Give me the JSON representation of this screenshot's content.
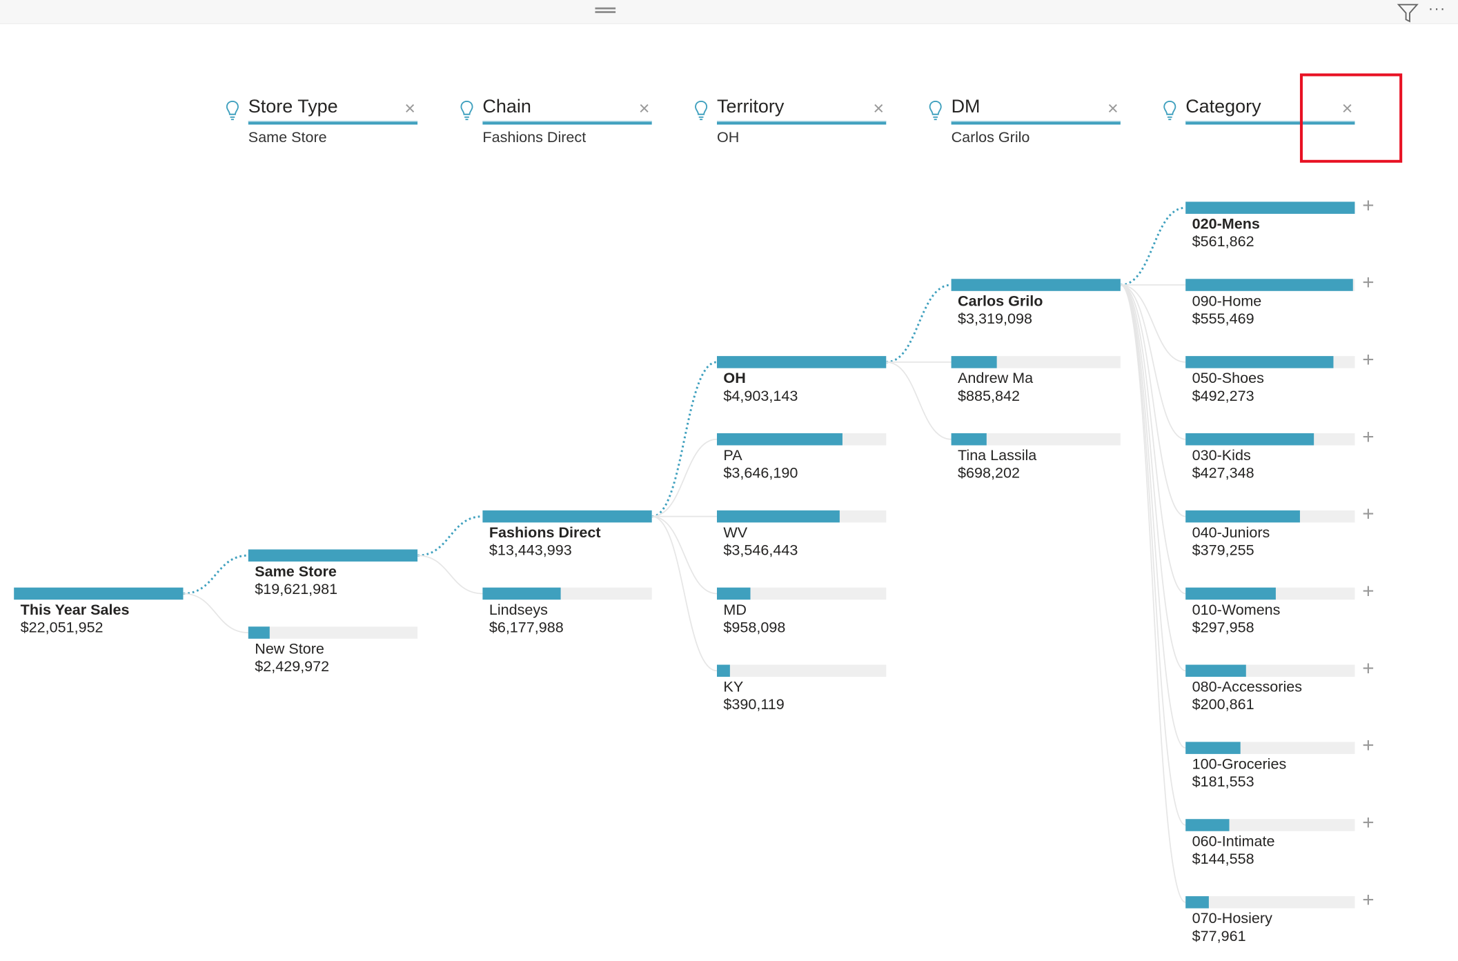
{
  "toolbar": {
    "grip_icon": "drag-handle-icon",
    "filter_icon": "filter-icon",
    "more_icon": "more-options-icon",
    "more_label": "···"
  },
  "accent_color": "#3fa0be",
  "highlight_color": "#e81123",
  "headers": [
    {
      "label": "Store Type",
      "value": "Same Store",
      "icon": "lightbulb-icon",
      "close": "×"
    },
    {
      "label": "Chain",
      "value": "Fashions Direct",
      "icon": "lightbulb-icon",
      "close": "×"
    },
    {
      "label": "Territory",
      "value": "OH",
      "icon": "lightbulb-icon",
      "close": "×"
    },
    {
      "label": "DM",
      "value": "Carlos Grilo",
      "icon": "lightbulb-icon",
      "close": "×"
    },
    {
      "label": "Category",
      "value": "",
      "icon": "lightbulb-icon",
      "close": "×"
    }
  ],
  "levels": [
    [
      {
        "label": "This Year Sales",
        "value": "$22,051,952",
        "selected": true
      }
    ],
    [
      {
        "label": "Same Store",
        "value": "$19,621,981",
        "selected": true
      },
      {
        "label": "New Store",
        "value": "$2,429,972"
      }
    ],
    [
      {
        "label": "Fashions Direct",
        "value": "$13,443,993",
        "selected": true
      },
      {
        "label": "Lindseys",
        "value": "$6,177,988"
      }
    ],
    [
      {
        "label": "OH",
        "value": "$4,903,143",
        "selected": true
      },
      {
        "label": "PA",
        "value": "$3,646,190"
      },
      {
        "label": "WV",
        "value": "$3,546,443"
      },
      {
        "label": "MD",
        "value": "$958,098"
      },
      {
        "label": "KY",
        "value": "$390,119"
      }
    ],
    [
      {
        "label": "Carlos Grilo",
        "value": "$3,319,098",
        "selected": true
      },
      {
        "label": "Andrew Ma",
        "value": "$885,842"
      },
      {
        "label": "Tina Lassila",
        "value": "$698,202"
      }
    ],
    [
      {
        "label": "020-Mens",
        "value": "$561,862",
        "selected": true,
        "plus": "+"
      },
      {
        "label": "090-Home",
        "value": "$555,469",
        "plus": "+"
      },
      {
        "label": "050-Shoes",
        "value": "$492,273",
        "plus": "+"
      },
      {
        "label": "030-Kids",
        "value": "$427,348",
        "plus": "+"
      },
      {
        "label": "040-Juniors",
        "value": "$379,255",
        "plus": "+"
      },
      {
        "label": "010-Womens",
        "value": "$297,958",
        "plus": "+"
      },
      {
        "label": "080-Accessories",
        "value": "$200,861",
        "plus": "+"
      },
      {
        "label": "100-Groceries",
        "value": "$181,553",
        "plus": "+"
      },
      {
        "label": "060-Intimate",
        "value": "$144,558",
        "plus": "+"
      },
      {
        "label": "070-Hosiery",
        "value": "$77,961",
        "plus": "+"
      }
    ]
  ]
}
